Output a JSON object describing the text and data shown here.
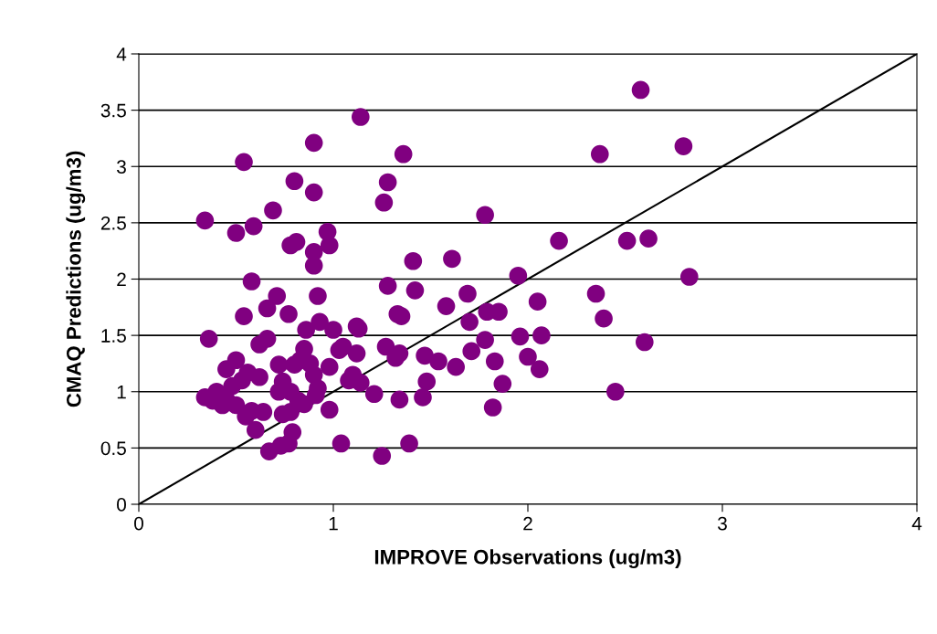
{
  "chart_data": {
    "type": "scatter",
    "xlabel": "IMPROVE Observations (ug/m3)",
    "ylabel": "CMAQ Predictions (ug/m3)",
    "xlim": [
      0,
      4
    ],
    "xticks": [
      0,
      1,
      2,
      3,
      4
    ],
    "ylim": [
      0,
      4
    ],
    "yticks": [
      0,
      0.5,
      1,
      1.5,
      2,
      2.5,
      3,
      3.5,
      4
    ],
    "grid": "y",
    "series": [
      {
        "marker": "circle",
        "color": "#800080",
        "x": [
          0.34,
          0.36,
          0.34,
          0.38,
          0.4,
          0.43,
          0.45,
          0.45,
          0.48,
          0.5,
          0.5,
          0.5,
          0.53,
          0.54,
          0.54,
          0.55,
          0.56,
          0.58,
          0.58,
          0.59,
          0.6,
          0.62,
          0.62,
          0.64,
          0.66,
          0.66,
          0.67,
          0.69,
          0.71,
          0.72,
          0.72,
          0.73,
          0.74,
          0.74,
          0.77,
          0.77,
          0.78,
          0.78,
          0.78,
          0.79,
          0.8,
          0.8,
          0.81,
          0.82,
          0.83,
          0.85,
          0.85,
          0.86,
          0.88,
          0.9,
          0.9,
          0.9,
          0.9,
          0.9,
          0.91,
          0.92,
          0.92,
          0.93,
          0.97,
          0.98,
          0.98,
          0.98,
          1.0,
          1.03,
          1.04,
          1.05,
          1.08,
          1.1,
          1.12,
          1.12,
          1.13,
          1.14,
          1.14,
          1.21,
          1.25,
          1.26,
          1.27,
          1.28,
          1.28,
          1.32,
          1.33,
          1.34,
          1.34,
          1.35,
          1.36,
          1.39,
          1.41,
          1.42,
          1.46,
          1.47,
          1.48,
          1.54,
          1.58,
          1.61,
          1.63,
          1.69,
          1.7,
          1.71,
          1.78,
          1.78,
          1.79,
          1.82,
          1.83,
          1.85,
          1.87,
          1.95,
          1.96,
          2.0,
          2.05,
          2.06,
          2.07,
          2.16,
          2.35,
          2.37,
          2.39,
          2.45,
          2.51,
          2.58,
          2.6,
          2.62,
          2.8,
          2.83
        ],
        "values": [
          2.52,
          1.47,
          0.95,
          0.92,
          1.0,
          0.88,
          1.2,
          0.93,
          1.05,
          1.28,
          0.88,
          2.41,
          1.1,
          3.04,
          1.67,
          0.78,
          1.17,
          1.98,
          0.83,
          2.47,
          0.66,
          1.42,
          1.13,
          0.82,
          1.74,
          1.47,
          0.47,
          2.61,
          1.85,
          1.24,
          1.0,
          0.52,
          1.09,
          0.8,
          0.54,
          1.69,
          0.82,
          1.0,
          2.3,
          0.64,
          1.24,
          2.87,
          2.33,
          0.92,
          1.28,
          0.89,
          1.38,
          1.55,
          1.25,
          3.21,
          2.77,
          2.24,
          2.12,
          1.15,
          0.97,
          1.85,
          1.03,
          1.62,
          2.42,
          2.3,
          0.84,
          1.22,
          1.55,
          1.37,
          0.54,
          1.4,
          1.1,
          1.15,
          1.58,
          1.34,
          1.56,
          3.44,
          1.08,
          0.98,
          0.43,
          2.68,
          1.4,
          2.86,
          1.94,
          1.3,
          1.69,
          1.34,
          0.93,
          1.67,
          3.11,
          0.54,
          2.16,
          1.9,
          0.95,
          1.32,
          1.09,
          1.27,
          1.76,
          2.18,
          1.22,
          1.87,
          1.62,
          1.36,
          2.57,
          1.46,
          1.71,
          0.86,
          1.27,
          1.71,
          1.07,
          2.03,
          1.49,
          1.31,
          1.8,
          1.2,
          1.5,
          2.34,
          1.87,
          3.11,
          1.65,
          1.0,
          2.34,
          3.68,
          1.44,
          2.36,
          3.18,
          2.02
        ]
      },
      {
        "type": "line",
        "color": "#000000",
        "x": [
          0,
          4
        ],
        "values": [
          0,
          4
        ]
      }
    ]
  }
}
